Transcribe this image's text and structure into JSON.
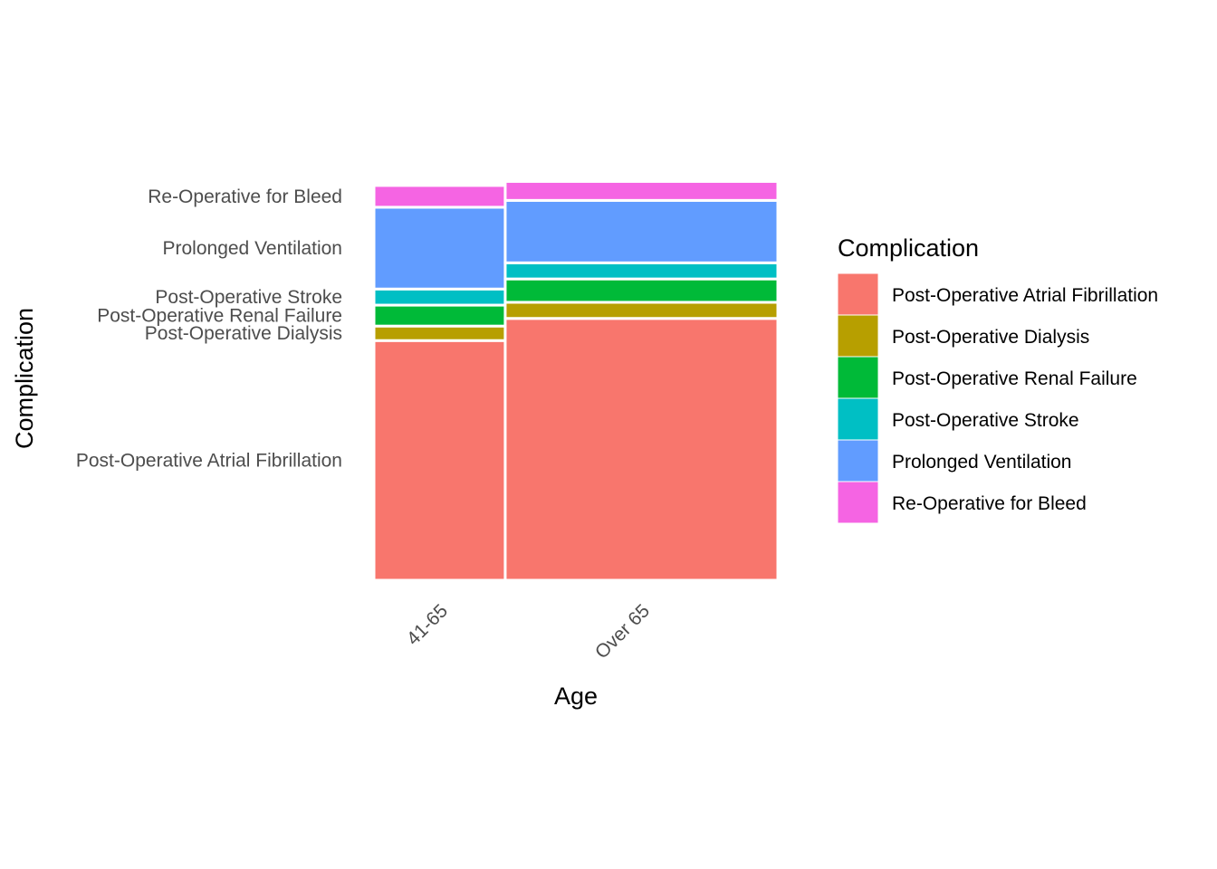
{
  "chart_data": {
    "type": "mosaic",
    "xlabel": "Age",
    "ylabel": "Complication",
    "categories": [
      "41-65",
      "Over 65"
    ],
    "column_widths": [
      0.325,
      0.675
    ],
    "y_tick_labels": [
      "Post-Operative Atrial Fibrillation",
      "Post-Operative Dialysis",
      "Post-Operative Renal Failure",
      "Post-Operative Stroke",
      "Prolonged Ventilation",
      "Re-Operative for Bleed"
    ],
    "series": [
      {
        "name": "Post-Operative Atrial Fibrillation",
        "color": "#F8766D",
        "values": [
          0.595,
          0.65
        ]
      },
      {
        "name": "Post-Operative Dialysis",
        "color": "#B79F00",
        "values": [
          0.036,
          0.04
        ]
      },
      {
        "name": "Post-Operative Renal Failure",
        "color": "#00BA38",
        "values": [
          0.052,
          0.058
        ]
      },
      {
        "name": "Post-Operative Stroke",
        "color": "#00BFC4",
        "values": [
          0.04,
          0.04
        ]
      },
      {
        "name": "Prolonged Ventilation",
        "color": "#619CFF",
        "values": [
          0.203,
          0.155
        ]
      },
      {
        "name": "Re-Operative for Bleed",
        "color": "#F564E3",
        "values": [
          0.054,
          0.047
        ]
      }
    ],
    "y_tick_reference_column": 0,
    "legend": {
      "title": "Complication",
      "position": "right"
    },
    "grid": false
  }
}
